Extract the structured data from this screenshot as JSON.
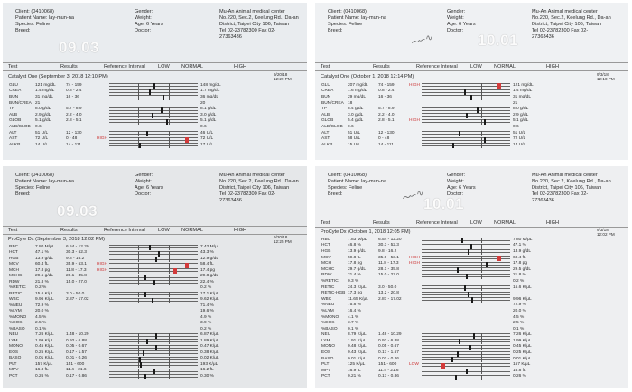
{
  "panels": [
    {
      "id": "q1",
      "big_label": "09.03",
      "client": "Client: (0410068)",
      "patient": "Patient Name: lay-mun-na",
      "species": "Species: Feline",
      "breed": "Breed:",
      "gender": "Gender:",
      "weight": "Weight:",
      "age": "Age: 6 Years",
      "doctor": "Doctor:",
      "clinic": [
        "Mu-An Animal medical center",
        "No.220, Sec.2, Keelung Rd., Da-an",
        "District, Taipei City 106, Taiwan",
        "Tel 02-23782300 Fax 02-",
        "27363436"
      ],
      "col_test": "Test",
      "col_results": "Results",
      "col_ref": "Reference Interval",
      "col_low": "LOW",
      "col_normal": "NORMAL",
      "col_high": "HIGH",
      "title": "Catalyst One (September 3, 2018 12:10 PM)",
      "hist_date": [
        "9/20/18",
        "12:29 PM"
      ],
      "rows": [
        {
          "name": "GLU",
          "val": "121 mg/dL",
          "ref": "74 - 159",
          "flag": "",
          "mk": 0.5,
          "red": false,
          "rv": "148 mg/dL"
        },
        {
          "name": "CREA",
          "val": "1.4 mg/dL",
          "ref": "0.8 - 2.4",
          "flag": "",
          "mk": 0.45,
          "red": false,
          "rv": "1.7 mg/dL"
        },
        {
          "name": "BUN",
          "val": "31 mg/dL",
          "ref": "16 - 36",
          "flag": "",
          "mk": 0.6,
          "red": false,
          "rv": "36 mg/dL"
        },
        {
          "name": "BUN/CREA",
          "val": "21",
          "ref": "",
          "flag": "",
          "mk": null,
          "red": false,
          "rv": "20"
        },
        {
          "name": "TP",
          "val": "8.0 g/dL",
          "ref": "5.7 - 8.9",
          "flag": "",
          "mk": 0.58,
          "red": false,
          "rv": "8.1 g/dL"
        },
        {
          "name": "ALB",
          "val": "2.9 g/dL",
          "ref": "2.2 - 4.0",
          "flag": "",
          "mk": 0.48,
          "red": false,
          "rv": "3.0 g/dL"
        },
        {
          "name": "GLOB",
          "val": "5.1 g/dL",
          "ref": "2.8 - 5.1",
          "flag": "",
          "mk": 0.64,
          "red": false,
          "rv": "5.1 g/dL"
        },
        {
          "name": "ALB/GLOB",
          "val": "0.6",
          "ref": "",
          "flag": "",
          "mk": null,
          "red": false,
          "rv": "0.6"
        },
        {
          "name": "ALT",
          "val": "51 U/L",
          "ref": "12 - 130",
          "flag": "",
          "mk": 0.42,
          "red": false,
          "rv": "46 U/L"
        },
        {
          "name": "AST",
          "val": "72 U/L",
          "ref": "0 - 48",
          "flag": "HIGH",
          "mk": 0.86,
          "red": true,
          "rv": "72 U/L"
        },
        {
          "name": "ALKP",
          "val": "14 U/L",
          "ref": "14 - 111",
          "flag": "",
          "mk": 0.34,
          "red": false,
          "rv": "17 U/L"
        }
      ]
    },
    {
      "id": "q2",
      "big_label": "10.01",
      "client": "Client: (0410068)",
      "patient": "Patient Name: lay-mun-na",
      "species": "Species: Feline",
      "breed": "Breed:",
      "gender": "Gender:",
      "weight": "Weight:",
      "age": "Age: 6 Years",
      "doctor": "Doctor:",
      "clinic": [
        "Mu-An Animal medical center",
        "No.220, Sec.2, Keelung Rd., Da-an",
        "District, Taipei City 106, Taiwan",
        "Tel 02-23782300 Fax 02-",
        "27363436"
      ],
      "col_test": "Test",
      "col_results": "Results",
      "col_ref": "Reference Interval",
      "col_low": "LOW",
      "col_normal": "NORMAL",
      "col_high": "HIGH",
      "title": "Catalyst One (October 1, 2018 12:14 PM)",
      "hist_date": [
        "9/3/18",
        "12:10 PM"
      ],
      "rows": [
        {
          "name": "GLU",
          "val": "207 mg/dL",
          "ref": "74 - 159",
          "flag": "HIGH",
          "mk": 0.86,
          "red": true,
          "rv": "121 mg/dL"
        },
        {
          "name": "CREA",
          "val": "1.6 mg/dL",
          "ref": "0.8 - 2.4",
          "flag": "",
          "mk": 0.48,
          "red": false,
          "rv": "1.4 mg/dL"
        },
        {
          "name": "BUN",
          "val": "29 mg/dL",
          "ref": "16 - 36",
          "flag": "",
          "mk": 0.55,
          "red": false,
          "rv": "31 mg/dL"
        },
        {
          "name": "BUN/CREA",
          "val": "18",
          "ref": "",
          "flag": "",
          "mk": null,
          "red": false,
          "rv": "21"
        },
        {
          "name": "TP",
          "val": "8.4 g/dL",
          "ref": "5.7 - 8.9",
          "flag": "",
          "mk": 0.62,
          "red": false,
          "rv": "8.0 g/dL"
        },
        {
          "name": "ALB",
          "val": "3.0 g/dL",
          "ref": "2.2 - 4.0",
          "flag": "",
          "mk": 0.5,
          "red": false,
          "rv": "2.9 g/dL"
        },
        {
          "name": "GLOB",
          "val": "5.4 g/dL",
          "ref": "2.8 - 5.1",
          "flag": "HIGH",
          "mk": 0.7,
          "red": false,
          "rv": "5.1 g/dL"
        },
        {
          "name": "ALB/GLOB",
          "val": "0.6",
          "ref": "",
          "flag": "",
          "mk": null,
          "red": false,
          "rv": "0.6"
        },
        {
          "name": "ALT",
          "val": "51 U/L",
          "ref": "12 - 130",
          "flag": "",
          "mk": 0.42,
          "red": false,
          "rv": "51 U/L"
        },
        {
          "name": "AST",
          "val": "58 U/L",
          "ref": "0 - 48",
          "flag": "",
          "mk": 0.7,
          "red": false,
          "rv": "72 U/L"
        },
        {
          "name": "ALKP",
          "val": "15 U/L",
          "ref": "14 - 111",
          "flag": "",
          "mk": 0.35,
          "red": false,
          "rv": "14 U/L"
        }
      ]
    },
    {
      "id": "q3",
      "big_label": "09.03",
      "client": "Client: (0410068)",
      "patient": "Patient Name: lay-mun-na",
      "species": "Species: Feline",
      "breed": "Breed:",
      "gender": "Gender:",
      "weight": "Weight:",
      "age": "Age: 6 Years",
      "doctor": "Doctor:",
      "clinic": [
        "Mu-An Animal medical center",
        "No.220, Sec.2, Keelung Rd., Da-an",
        "District, Taipei City 106, Taiwan",
        "Tel 02-23782300 Fax 02-",
        "27363436"
      ],
      "col_test": "Test",
      "col_results": "Results",
      "col_ref": "Reference Interval",
      "col_low": "LOW",
      "col_normal": "NORMAL",
      "col_high": "HIGH",
      "title": "ProCyte Dx (September 3, 2018 12:02 PM)",
      "hist_date": [
        "9/20/18",
        "12:25 PM"
      ],
      "rows": [
        {
          "name": "RBC",
          "val": "7.80 M/μL",
          "ref": "6.54 - 12.20",
          "flag": "",
          "mk": 0.45,
          "red": false,
          "rv": "7.42 M/μL"
        },
        {
          "name": "HCT",
          "val": "47.1 %",
          "ref": "30.3 - 52.3",
          "flag": "",
          "mk": 0.55,
          "red": false,
          "rv": "43.3 %"
        },
        {
          "name": "HGB",
          "val": "13.9 g/dL",
          "ref": "9.8 - 16.2",
          "flag": "",
          "mk": 0.52,
          "red": false,
          "rv": "12.9 g/dL"
        },
        {
          "name": "MCV",
          "val": "60.4 fL",
          "ref": "35.9 - 53.1",
          "flag": "HIGH",
          "mk": 0.86,
          "red": true,
          "rv": "58.4 fL"
        },
        {
          "name": "MCH",
          "val": "17.8 pg",
          "ref": "11.8 - 17.3",
          "flag": "HIGH",
          "mk": 0.72,
          "red": true,
          "rv": "17.4 pg"
        },
        {
          "name": "MCHC",
          "val": "29.5 g/dL",
          "ref": "28.1 - 35.8",
          "flag": "",
          "mk": 0.4,
          "red": false,
          "rv": "29.8 g/dL"
        },
        {
          "name": "RDW",
          "val": "21.8 %",
          "ref": "15.0 - 27.0",
          "flag": "",
          "mk": 0.5,
          "red": false,
          "rv": "22.4 %"
        },
        {
          "name": "%RETIC",
          "val": "0.2 %",
          "ref": "",
          "flag": "",
          "mk": null,
          "red": false,
          "rv": "0.2 %"
        },
        {
          "name": "RETIC",
          "val": "15.6 K/μL",
          "ref": "3.0 - 50.0",
          "flag": "",
          "mk": 0.4,
          "red": false,
          "rv": "17.1 K/μL"
        },
        {
          "name": "WBC",
          "val": "9.96 K/μL",
          "ref": "2.87 - 17.02",
          "flag": "",
          "mk": 0.48,
          "red": false,
          "rv": "9.62 K/μL"
        },
        {
          "name": "%NEU",
          "val": "72.9 %",
          "ref": "",
          "flag": "",
          "mk": null,
          "red": false,
          "rv": "71.4 %"
        },
        {
          "name": "%LYM",
          "val": "20.0 %",
          "ref": "",
          "flag": "",
          "mk": null,
          "red": false,
          "rv": "19.6 %"
        },
        {
          "name": "%MONO",
          "val": "4.5 %",
          "ref": "",
          "flag": "",
          "mk": null,
          "red": false,
          "rv": "4.9 %"
        },
        {
          "name": "%EOS",
          "val": "2.5 %",
          "ref": "",
          "flag": "",
          "mk": null,
          "red": false,
          "rv": "3.9 %"
        },
        {
          "name": "%BASO",
          "val": "0.1 %",
          "ref": "",
          "flag": "",
          "mk": null,
          "red": false,
          "rv": "0.2 %"
        },
        {
          "name": "NEU",
          "val": "7.26 K/μL",
          "ref": "1.48 - 10.29",
          "flag": "",
          "mk": 0.52,
          "red": false,
          "rv": "6.87 K/μL"
        },
        {
          "name": "LYM",
          "val": "1.99 K/μL",
          "ref": "0.92 - 6.88",
          "flag": "",
          "mk": 0.42,
          "red": false,
          "rv": "1.89 K/μL"
        },
        {
          "name": "MONO",
          "val": "0.45 K/μL",
          "ref": "0.05 - 0.67",
          "flag": "",
          "mk": 0.52,
          "red": false,
          "rv": "0.47 K/μL"
        },
        {
          "name": "EOS",
          "val": "0.25 K/μL",
          "ref": "0.17 - 1.57",
          "flag": "",
          "mk": 0.38,
          "red": false,
          "rv": "0.38 K/μL"
        },
        {
          "name": "BASO",
          "val": "0.01 K/μL",
          "ref": "0.01 - 0.26",
          "flag": "",
          "mk": 0.34,
          "red": false,
          "rv": "0.02 K/μL"
        },
        {
          "name": "PLT",
          "val": "157 K/μL",
          "ref": "151 - 600",
          "flag": "",
          "mk": 0.35,
          "red": false,
          "rv": "193 K/μL"
        },
        {
          "name": "MPV",
          "val": "16.8 fL",
          "ref": "11.4 - 21.6",
          "flag": "",
          "mk": 0.5,
          "red": false,
          "rv": "16.2 fL"
        },
        {
          "name": "PCT",
          "val": "0.26 %",
          "ref": "0.17 - 0.86",
          "flag": "",
          "mk": 0.4,
          "red": false,
          "rv": "0.30 %"
        }
      ]
    },
    {
      "id": "q4",
      "big_label": "10.01",
      "client": "Client: (0410068)",
      "patient": "Patient Name: lay-mun-na",
      "species": "Species: Feline",
      "breed": "Breed:",
      "gender": "Gender:",
      "weight": "Weight:",
      "age": "Age: 6 Years",
      "doctor": "Doctor:",
      "clinic": [
        "Mu-An Animal medical center",
        "No.220, Sec.2, Keelung Rd., Da-an",
        "District, Taipei City 106, Taiwan",
        "Tel 02-23782300 Fax 02-",
        "27363436"
      ],
      "col_test": "Test",
      "col_results": "Results",
      "col_ref": "Reference Interval",
      "col_low": "LOW",
      "col_normal": "NORMAL",
      "col_high": "HIGH",
      "title": "ProCyte Dx (October 1, 2018 12:05 PM)",
      "hist_date": [
        "9/3/18",
        "12:02 PM"
      ],
      "rows": [
        {
          "name": "RBC",
          "val": "7.83 M/μL",
          "ref": "6.54 - 12.20",
          "flag": "",
          "mk": 0.45,
          "red": false,
          "rv": "7.80 M/μL"
        },
        {
          "name": "HCT",
          "val": "46.8 %",
          "ref": "30.3 - 52.3",
          "flag": "",
          "mk": 0.55,
          "red": false,
          "rv": "47.1 %"
        },
        {
          "name": "HGB",
          "val": "13.9 g/dL",
          "ref": "9.8 - 16.2",
          "flag": "",
          "mk": 0.52,
          "red": false,
          "rv": "13.9 g/dL"
        },
        {
          "name": "MCV",
          "val": "59.8 fL",
          "ref": "35.9 - 53.1",
          "flag": "HIGH",
          "mk": 0.86,
          "red": true,
          "rv": "60.4 fL"
        },
        {
          "name": "MCH",
          "val": "17.8 pg",
          "ref": "11.8 - 17.3",
          "flag": "HIGH",
          "mk": 0.72,
          "red": false,
          "rv": "17.8 pg"
        },
        {
          "name": "MCHC",
          "val": "29.7 g/dL",
          "ref": "28.1 - 35.8",
          "flag": "",
          "mk": 0.4,
          "red": false,
          "rv": "29.5 g/dL"
        },
        {
          "name": "RDW",
          "val": "21.4 %",
          "ref": "15.0 - 27.0",
          "flag": "",
          "mk": 0.5,
          "red": false,
          "rv": "21.8 %"
        },
        {
          "name": "%RETIC",
          "val": "0.3 %",
          "ref": "",
          "flag": "",
          "mk": null,
          "red": false,
          "rv": "0.2 %"
        },
        {
          "name": "RETIC",
          "val": "24.3 K/μL",
          "ref": "3.0 - 50.0",
          "flag": "",
          "mk": 0.48,
          "red": false,
          "rv": "15.6 K/μL"
        },
        {
          "name": "RETIC-HGB",
          "val": "17.3 pg",
          "ref": "13.2 - 20.8",
          "flag": "",
          "mk": 0.52,
          "red": false,
          "rv": ""
        },
        {
          "name": "WBC",
          "val": "11.65 K/μL",
          "ref": "2.87 - 17.02",
          "flag": "",
          "mk": 0.56,
          "red": false,
          "rv": "9.96 K/μL"
        },
        {
          "name": "%NEU",
          "val": "75.8 %",
          "ref": "",
          "flag": "",
          "mk": null,
          "red": false,
          "rv": "72.9 %"
        },
        {
          "name": "%LYM",
          "val": "16.4 %",
          "ref": "",
          "flag": "",
          "mk": null,
          "red": false,
          "rv": "20.0 %"
        },
        {
          "name": "%MONO",
          "val": "4.1 %",
          "ref": "",
          "flag": "",
          "mk": null,
          "red": false,
          "rv": "4.5 %"
        },
        {
          "name": "%EOS",
          "val": "3.7 %",
          "ref": "",
          "flag": "",
          "mk": null,
          "red": false,
          "rv": "2.5 %"
        },
        {
          "name": "%BASO",
          "val": "0.1 %",
          "ref": "",
          "flag": "",
          "mk": null,
          "red": false,
          "rv": "0.1 %"
        },
        {
          "name": "NEU",
          "val": "8.79 K/μL",
          "ref": "1.48 - 10.29",
          "flag": "",
          "mk": 0.58,
          "red": false,
          "rv": "7.26 K/μL"
        },
        {
          "name": "LYM",
          "val": "1.91 K/μL",
          "ref": "0.92 - 6.88",
          "flag": "",
          "mk": 0.42,
          "red": false,
          "rv": "1.99 K/μL"
        },
        {
          "name": "MONO",
          "val": "0.48 K/μL",
          "ref": "0.05 - 0.67",
          "flag": "",
          "mk": 0.54,
          "red": false,
          "rv": "0.45 K/μL"
        },
        {
          "name": "EOS",
          "val": "0.43 K/μL",
          "ref": "0.17 - 1.57",
          "flag": "",
          "mk": 0.4,
          "red": false,
          "rv": "0.25 K/μL"
        },
        {
          "name": "BASO",
          "val": "0.01 K/μL",
          "ref": "0.01 - 0.26",
          "flag": "",
          "mk": 0.34,
          "red": false,
          "rv": "0.01 K/μL"
        },
        {
          "name": "PLT",
          "val": "125 K/μL",
          "ref": "151 - 600",
          "flag": "LOW",
          "mk": 0.22,
          "red": true,
          "rv": "157 K/μL"
        },
        {
          "name": "MPV",
          "val": "16.9 fL",
          "ref": "11.4 - 21.6",
          "flag": "",
          "mk": 0.5,
          "red": false,
          "rv": "16.8 fL"
        },
        {
          "name": "PCT",
          "val": "0.21 %",
          "ref": "0.17 - 0.86",
          "flag": "",
          "mk": 0.38,
          "red": false,
          "rv": "0.26 %"
        }
      ]
    }
  ]
}
